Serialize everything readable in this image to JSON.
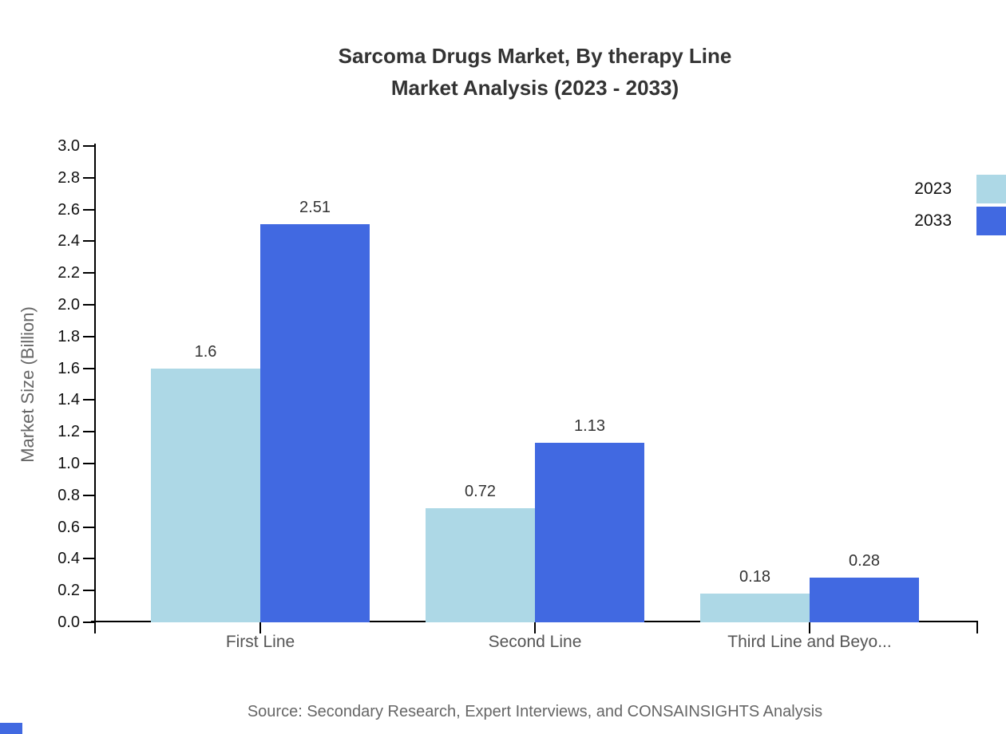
{
  "chart_data": {
    "type": "bar",
    "title": "Sarcoma Drugs Market, By therapy Line\nMarket Analysis (2023 - 2033)",
    "title_lines": [
      "Sarcoma Drugs Market, By therapy Line",
      "Market Analysis (2023 - 2033)"
    ],
    "categories": [
      "First Line",
      "Second Line",
      "Third Line and Beyo..."
    ],
    "series": [
      {
        "name": "2023",
        "color": "#add8e6",
        "values": [
          1.6,
          0.72,
          0.18
        ],
        "value_labels": [
          "1.6",
          "0.72",
          "0.18"
        ]
      },
      {
        "name": "2033",
        "color": "#4169e1",
        "values": [
          2.51,
          1.13,
          0.28
        ],
        "value_labels": [
          "2.51",
          "1.13",
          "0.28"
        ]
      }
    ],
    "xlabel": "",
    "ylabel": "Market Size (Billion)",
    "ylim": [
      0,
      3.0
    ],
    "ytick_step": 0.2,
    "grid": false,
    "legend_position": "top-right",
    "bar_value_labels_shown": true
  },
  "source_note": "Source: Secondary Research, Expert Interviews, and CONSAINSIGHTS Analysis",
  "colors": {
    "background": "#ffffff",
    "title_text": "#333333",
    "axis_line": "#000000",
    "tick_label_text": "#111111",
    "category_label_text": "#555555",
    "muted_text": "#666666",
    "accent": "#4169e1"
  }
}
